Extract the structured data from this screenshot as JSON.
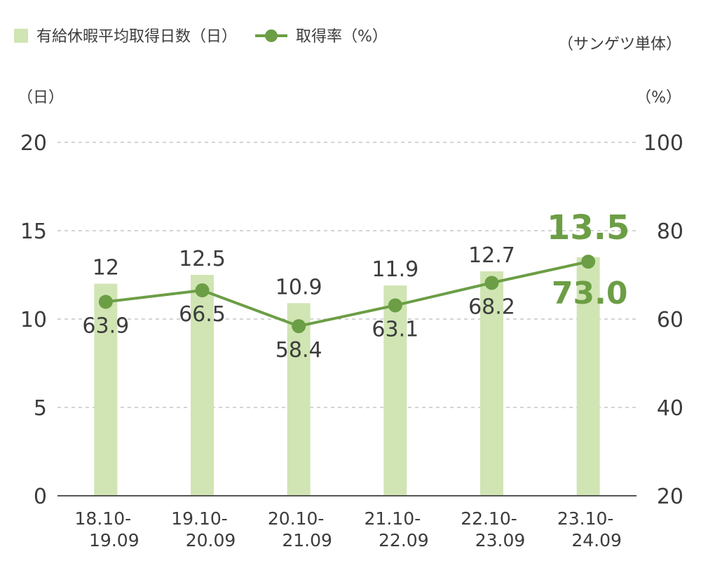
{
  "chart_data": {
    "type": "bar",
    "legend": {
      "bar_label": "有給休暇平均取得日数（日）",
      "line_label": "取得率（%）",
      "position": "top-left"
    },
    "scope_note": "（サンゲツ単体）",
    "y_left": {
      "unit": "（日）",
      "ticks": [
        "0",
        "5",
        "10",
        "15",
        "20"
      ],
      "lim": [
        0,
        20
      ]
    },
    "y_right": {
      "unit": "（%）",
      "ticks": [
        "20",
        "40",
        "60",
        "80",
        "100"
      ],
      "lim": [
        20,
        100
      ]
    },
    "categories": [
      {
        "line1": "18.10-",
        "line2": "19.09"
      },
      {
        "line1": "19.10-",
        "line2": "20.09"
      },
      {
        "line1": "20.10-",
        "line2": "21.09"
      },
      {
        "line1": "21.10-",
        "line2": "22.09"
      },
      {
        "line1": "22.10-",
        "line2": "23.09"
      },
      {
        "line1": "23.10-",
        "line2": "24.09"
      }
    ],
    "series": [
      {
        "type": "bar",
        "axis": "left",
        "values": [
          12,
          12.5,
          10.9,
          11.9,
          12.7,
          13.5
        ],
        "labels": [
          "12",
          "12.5",
          "10.9",
          "11.9",
          "12.7",
          "13.5"
        ]
      },
      {
        "type": "line",
        "axis": "right",
        "values": [
          63.9,
          66.5,
          58.4,
          63.1,
          68.2,
          73.0
        ],
        "labels": [
          "63.9",
          "66.5",
          "58.4",
          "63.1",
          "68.2",
          "73.0"
        ]
      }
    ],
    "highlight_last": true,
    "grid": true,
    "colors": {
      "bar": "#d0e5b3",
      "line": "#6c9e45",
      "grid": "#a8a8a8",
      "text": "#3c3c3c",
      "axis": "#555555"
    }
  }
}
